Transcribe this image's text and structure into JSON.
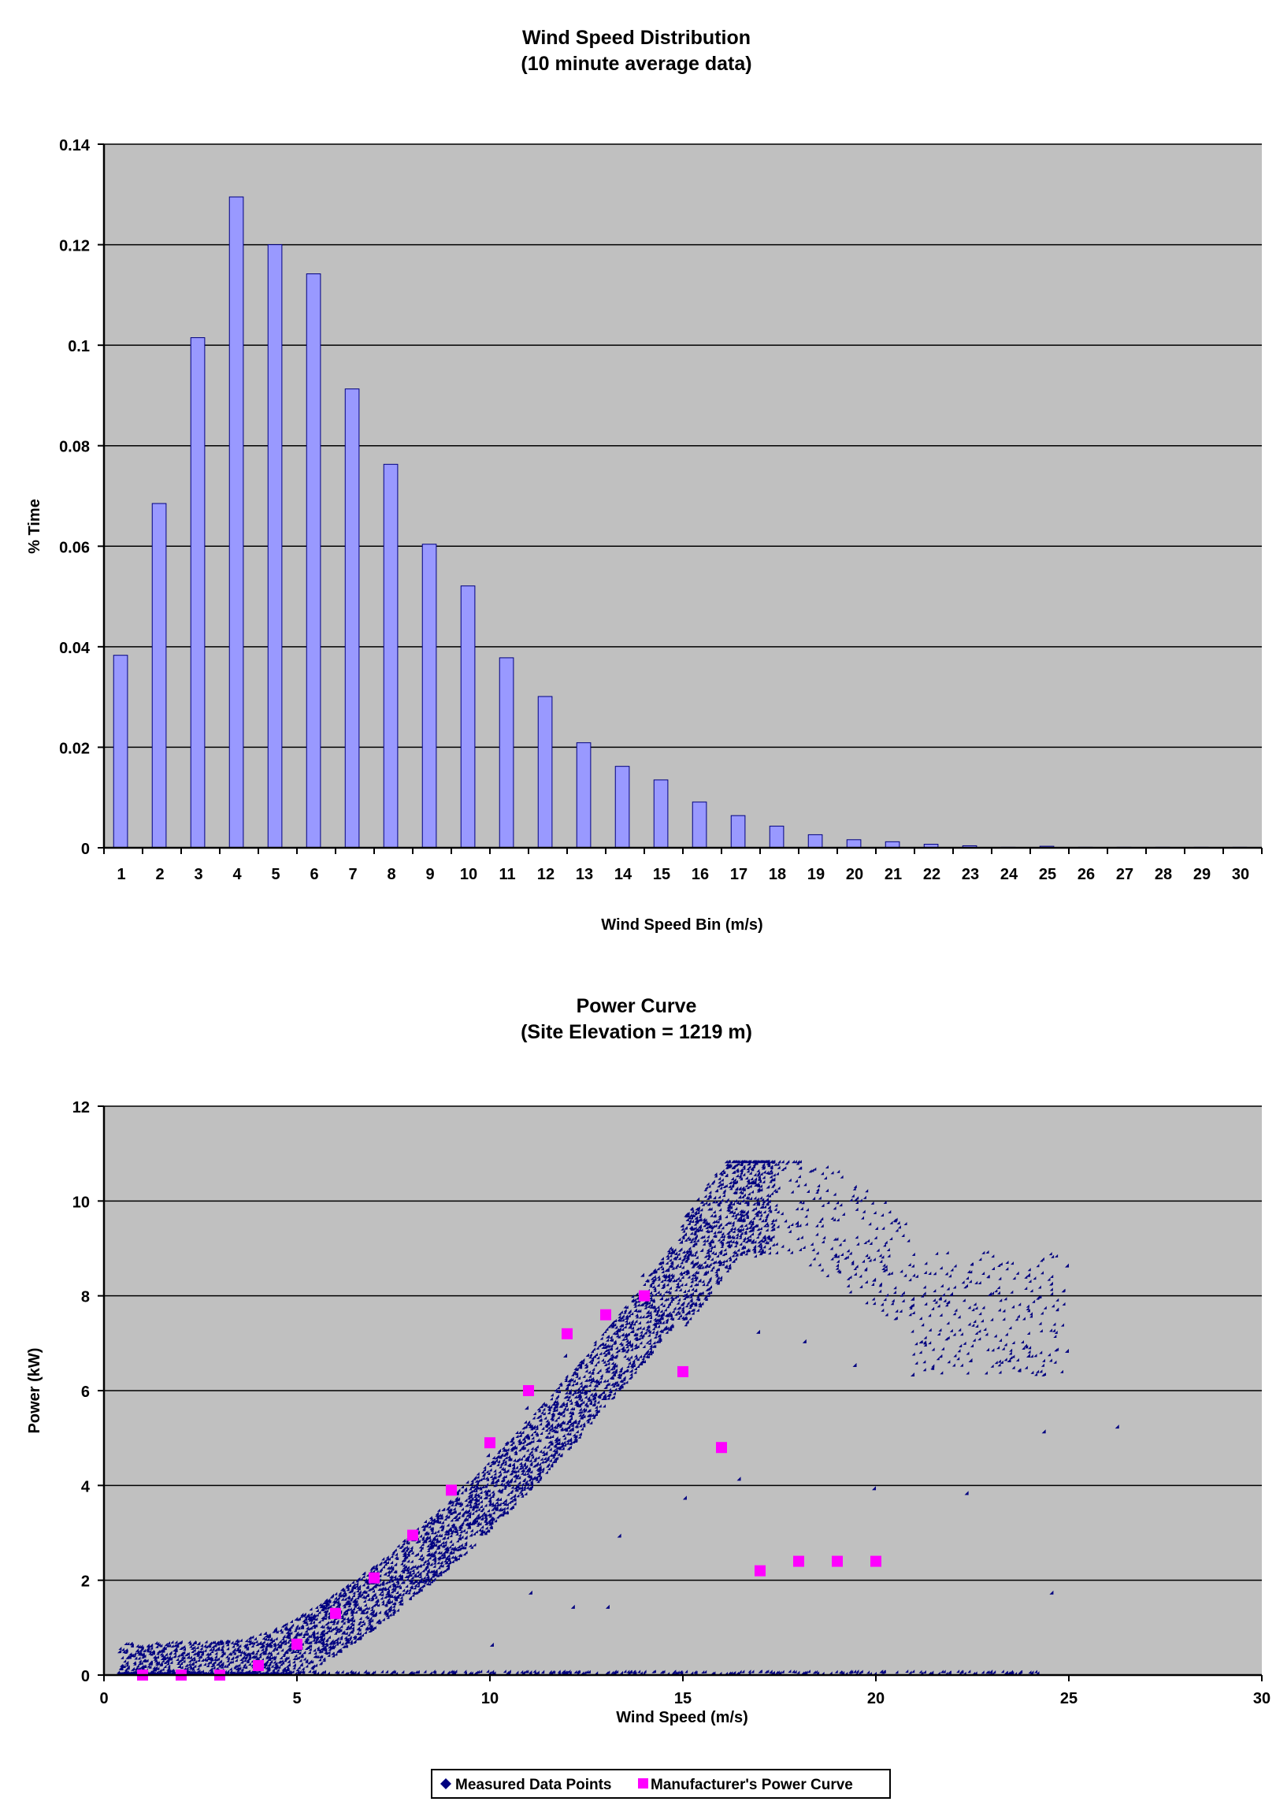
{
  "chart_data": [
    {
      "type": "bar",
      "title": "Wind Speed Distribution",
      "subtitle": "(10 minute average data)",
      "xlabel": "Wind Speed Bin (m/s)",
      "ylabel": "% Time",
      "categories": [
        "1",
        "2",
        "3",
        "4",
        "5",
        "6",
        "7",
        "8",
        "9",
        "10",
        "11",
        "12",
        "13",
        "14",
        "15",
        "16",
        "17",
        "18",
        "19",
        "20",
        "21",
        "22",
        "23",
        "24",
        "25",
        "26",
        "27",
        "28",
        "29",
        "30"
      ],
      "values": [
        0.0383,
        0.0685,
        0.1015,
        0.1295,
        0.12,
        0.1142,
        0.0913,
        0.0763,
        0.0604,
        0.0521,
        0.0378,
        0.0301,
        0.0209,
        0.0162,
        0.0135,
        0.0091,
        0.0064,
        0.0043,
        0.0026,
        0.0016,
        0.0012,
        0.0007,
        0.0004,
        0.0001,
        0.0003,
        0.0001,
        0.0001,
        0.0001,
        0.0001,
        0.0001
      ],
      "ylim": [
        0,
        0.14
      ],
      "yticks": [
        0,
        0.02,
        0.04,
        0.06,
        0.08,
        0.1,
        0.12,
        0.14
      ],
      "ytick_labels": [
        "0",
        "0.02",
        "0.04",
        "0.06",
        "0.08",
        "0.1",
        "0.12",
        "0.14"
      ],
      "grid": true,
      "colors": {
        "bar": "#9999ff",
        "bar_stroke": "#000080",
        "plot_bg": "#c0c0c0",
        "grid": "#000000"
      }
    },
    {
      "type": "scatter",
      "title": "Power Curve",
      "subtitle": "(Site Elevation = 1219 m)",
      "xlabel": "Wind Speed (m/s)",
      "ylabel": "Power (kW)",
      "xlim": [
        0,
        30
      ],
      "ylim": [
        0,
        12
      ],
      "xticks": [
        0,
        5,
        10,
        15,
        20,
        25,
        30
      ],
      "yticks": [
        0,
        2,
        4,
        6,
        8,
        10,
        12
      ],
      "grid": true,
      "legend_position": "bottom",
      "series": [
        {
          "name": "Measured Data Points",
          "color": "#000080",
          "marker": "diamond",
          "point_count": 6000,
          "note": "dense cloud following manufacturer-like curve, peak ~10.4 kW near 16-17 m/s, scattered zero-power points from 0 to 24 m/s",
          "points": [
            [
              0.5,
              0.1
            ],
            [
              2,
              0.15
            ],
            [
              3,
              0.2
            ],
            [
              4,
              0.3
            ],
            [
              5,
              0.6
            ],
            [
              6,
              1.1
            ],
            [
              7,
              1.8
            ],
            [
              8,
              2.6
            ],
            [
              9,
              3.6
            ],
            [
              10,
              4.6
            ],
            [
              11,
              5.6
            ],
            [
              12,
              6.7
            ],
            [
              13,
              7.6
            ],
            [
              14,
              8.4
            ],
            [
              15,
              9.1
            ],
            [
              16,
              9.6
            ],
            [
              17,
              9.9
            ],
            [
              18,
              9.5
            ],
            [
              19,
              8.8
            ],
            [
              20,
              8.3
            ],
            [
              21,
              7.9
            ],
            [
              22,
              8.0
            ],
            [
              23,
              8.0
            ],
            [
              24,
              8.4
            ],
            [
              25,
              8.6
            ],
            [
              26.3,
              5.2
            ],
            [
              24.4,
              5.1
            ],
            [
              24.6,
              1.7
            ],
            [
              22.4,
              3.8
            ],
            [
              20,
              3.9
            ],
            [
              16.5,
              4.1
            ],
            [
              15.1,
              3.7
            ],
            [
              13.4,
              2.9
            ],
            [
              13.1,
              1.4
            ],
            [
              12.2,
              1.4
            ],
            [
              11.1,
              1.7
            ],
            [
              10.1,
              0.6
            ],
            [
              17,
              7.2
            ],
            [
              18.2,
              7.0
            ],
            [
              19.5,
              6.5
            ],
            [
              21,
              6.3
            ],
            [
              22.5,
              6.6
            ],
            [
              23.5,
              6.6
            ],
            [
              24,
              6.7
            ],
            [
              25,
              6.8
            ]
          ]
        },
        {
          "name": "Manufacturer's Power Curve",
          "color": "#ff00ff",
          "marker": "square",
          "points": [
            [
              1,
              0
            ],
            [
              2,
              0
            ],
            [
              3,
              0
            ],
            [
              4,
              0.2
            ],
            [
              5,
              0.65
            ],
            [
              6,
              1.3
            ],
            [
              7,
              2.05
            ],
            [
              8,
              2.95
            ],
            [
              9,
              3.9
            ],
            [
              10,
              4.9
            ],
            [
              11,
              6.0
            ],
            [
              12,
              7.2
            ],
            [
              13,
              7.6
            ],
            [
              14,
              8.0
            ],
            [
              15,
              6.4
            ],
            [
              16,
              4.8
            ],
            [
              17,
              2.2
            ],
            [
              18,
              2.4
            ],
            [
              19,
              2.4
            ],
            [
              20,
              2.4
            ]
          ]
        }
      ],
      "colors": {
        "plot_bg": "#c0c0c0",
        "grid": "#000000",
        "legend_bg": "#ffffff"
      }
    }
  ]
}
